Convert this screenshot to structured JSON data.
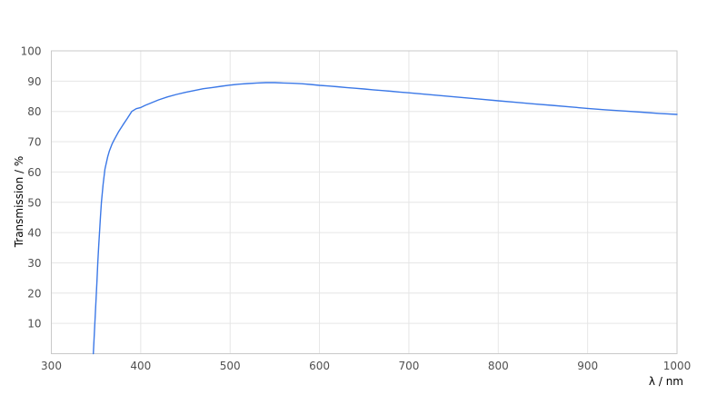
{
  "chart_data": {
    "type": "line",
    "title": "",
    "xlabel": "λ / nm",
    "ylabel": "Transmission / %",
    "xlim": [
      300,
      1000
    ],
    "ylim": [
      0,
      100
    ],
    "x_ticks": [
      300,
      400,
      500,
      600,
      700,
      800,
      900,
      1000
    ],
    "y_ticks": [
      10,
      20,
      30,
      40,
      50,
      60,
      70,
      80,
      90,
      100
    ],
    "grid": true,
    "legend": "none",
    "series": [
      {
        "name": "transmission-curve",
        "color": "#3b78e7",
        "points": [
          [
            347,
            0
          ],
          [
            348,
            6
          ],
          [
            349,
            12
          ],
          [
            350,
            18
          ],
          [
            351,
            24
          ],
          [
            352,
            30
          ],
          [
            353,
            35.5
          ],
          [
            354,
            40.5
          ],
          [
            355,
            45.5
          ],
          [
            356,
            50
          ],
          [
            358,
            56
          ],
          [
            360,
            61
          ],
          [
            363,
            65
          ],
          [
            365,
            67
          ],
          [
            368,
            69.3
          ],
          [
            370,
            70.5
          ],
          [
            375,
            73.2
          ],
          [
            380,
            75.5
          ],
          [
            385,
            77.7
          ],
          [
            390,
            80
          ],
          [
            395,
            80.9
          ],
          [
            400,
            81.3
          ],
          [
            405,
            82
          ],
          [
            410,
            82.6
          ],
          [
            420,
            83.8
          ],
          [
            430,
            84.8
          ],
          [
            440,
            85.6
          ],
          [
            450,
            86.3
          ],
          [
            460,
            86.9
          ],
          [
            470,
            87.5
          ],
          [
            480,
            87.9
          ],
          [
            490,
            88.3
          ],
          [
            500,
            88.7
          ],
          [
            510,
            89.0
          ],
          [
            520,
            89.2
          ],
          [
            530,
            89.4
          ],
          [
            540,
            89.5
          ],
          [
            550,
            89.5
          ],
          [
            560,
            89.4
          ],
          [
            570,
            89.3
          ],
          [
            580,
            89.15
          ],
          [
            590,
            88.9
          ],
          [
            600,
            88.6
          ],
          [
            610,
            88.4
          ],
          [
            620,
            88.15
          ],
          [
            630,
            87.9
          ],
          [
            640,
            87.65
          ],
          [
            650,
            87.4
          ],
          [
            660,
            87.15
          ],
          [
            670,
            86.9
          ],
          [
            680,
            86.65
          ],
          [
            690,
            86.4
          ],
          [
            700,
            86.15
          ],
          [
            720,
            85.65
          ],
          [
            740,
            85.1
          ],
          [
            760,
            84.6
          ],
          [
            780,
            84.05
          ],
          [
            800,
            83.5
          ],
          [
            820,
            83.0
          ],
          [
            840,
            82.5
          ],
          [
            860,
            82.0
          ],
          [
            880,
            81.5
          ],
          [
            900,
            81.0
          ],
          [
            920,
            80.55
          ],
          [
            940,
            80.15
          ],
          [
            960,
            79.75
          ],
          [
            980,
            79.35
          ],
          [
            1000,
            79.0
          ]
        ]
      }
    ]
  },
  "colors": {
    "background": "#ffffff",
    "gridline": "#e6e6e6",
    "axis_border": "#c9c9c9",
    "tick_text": "#505050",
    "line": "#3b78e7"
  }
}
